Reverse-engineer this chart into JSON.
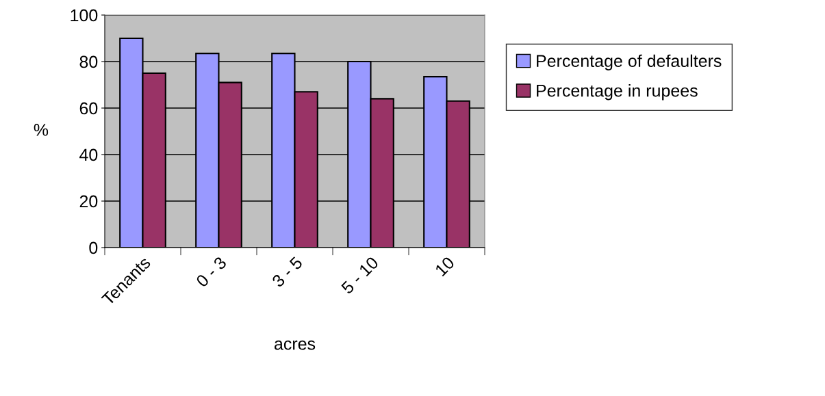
{
  "chart_data": {
    "type": "bar",
    "xlabel": "acres",
    "ylabel": "%",
    "categories": [
      "Tenants",
      "0 - 3",
      "3 - 5",
      "5 - 10",
      "10"
    ],
    "series": [
      {
        "name": "Percentage of defaulters",
        "color": "#9999ff",
        "values": [
          90,
          83.5,
          83.5,
          80,
          73.5
        ]
      },
      {
        "name": "Percentage in rupees",
        "color": "#993366",
        "values": [
          75,
          71,
          67,
          64,
          63
        ]
      }
    ],
    "ylim": [
      0,
      100
    ],
    "yticks": [
      0,
      20,
      40,
      60,
      80,
      100
    ],
    "grid": "y",
    "legend": "top right"
  }
}
